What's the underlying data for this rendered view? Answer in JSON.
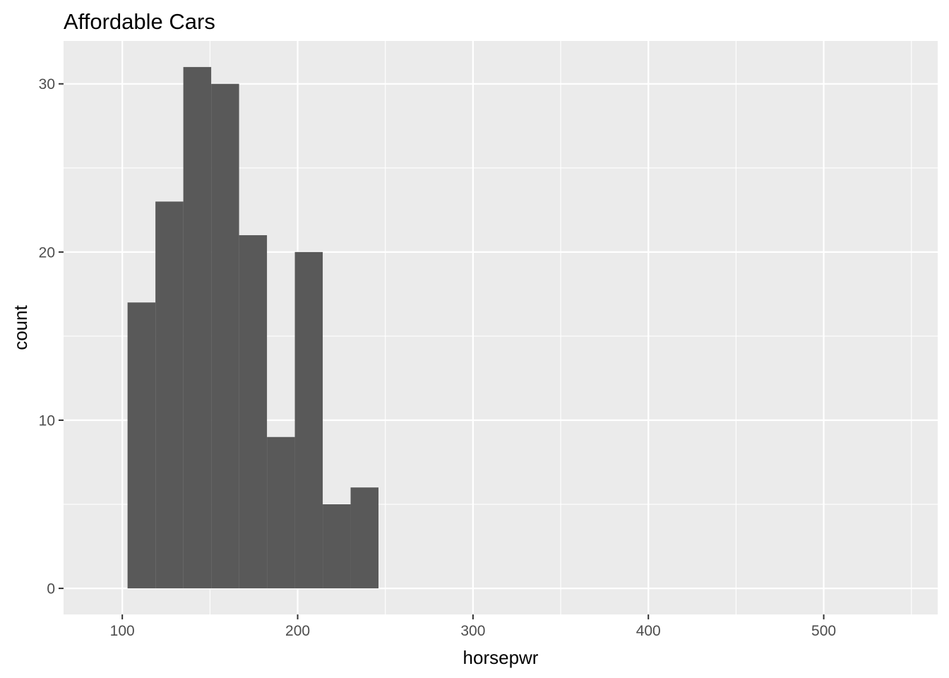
{
  "chart_data": {
    "type": "bar",
    "title": "Affordable Cars",
    "xlabel": "horsepwr",
    "ylabel": "count",
    "xlim": [
      66.5,
      565
    ],
    "ylim": [
      -1.55,
      32.55
    ],
    "x_ticks": [
      100,
      200,
      300,
      400,
      500
    ],
    "y_ticks": [
      0,
      10,
      20,
      30
    ],
    "x_minor_ticks": [
      150,
      250,
      350,
      450,
      550
    ],
    "y_minor_ticks": [
      5,
      15,
      25
    ],
    "bin_width": 15.9,
    "bins": [
      {
        "x_start": 103,
        "x_end": 118.9,
        "count": 17
      },
      {
        "x_start": 118.9,
        "x_end": 134.8,
        "count": 23
      },
      {
        "x_start": 134.8,
        "x_end": 150.7,
        "count": 31
      },
      {
        "x_start": 150.7,
        "x_end": 166.6,
        "count": 30
      },
      {
        "x_start": 166.6,
        "x_end": 182.5,
        "count": 21
      },
      {
        "x_start": 182.5,
        "x_end": 198.4,
        "count": 9
      },
      {
        "x_start": 198.4,
        "x_end": 214.3,
        "count": 20
      },
      {
        "x_start": 214.3,
        "x_end": 230.2,
        "count": 5
      },
      {
        "x_start": 230.2,
        "x_end": 246.1,
        "count": 6
      }
    ],
    "grid": true,
    "legend": "none",
    "colors": {
      "panel_background": "#ebebeb",
      "grid_line": "#ffffff",
      "bar_fill": "#595959",
      "tick_mark": "#333333",
      "tick_label": "#4d4d4d"
    }
  }
}
